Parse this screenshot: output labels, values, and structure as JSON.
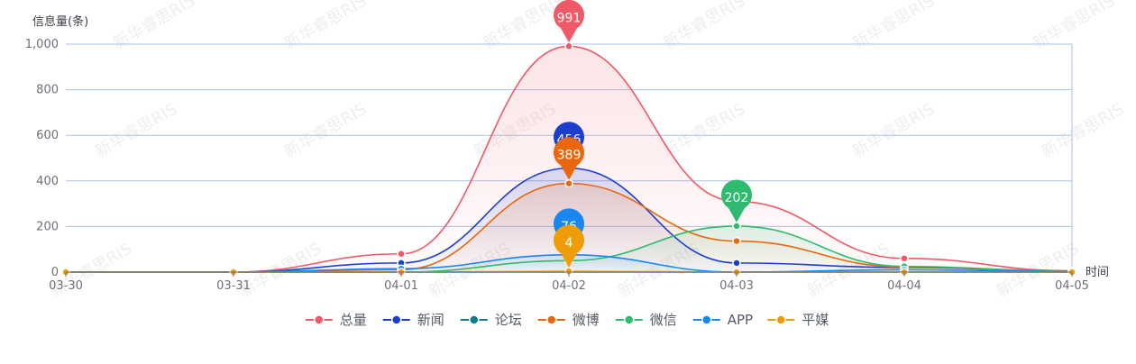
{
  "chart_data": {
    "type": "area",
    "ylabel": "信息量(条)",
    "xlabel": "时间",
    "categories": [
      "03-30",
      "03-31",
      "04-01",
      "04-02",
      "04-03",
      "04-04",
      "04-05"
    ],
    "yticks": [
      "0",
      "200",
      "400",
      "600",
      "800",
      "1,000"
    ],
    "ylim": [
      0,
      1000
    ],
    "grid": true,
    "legend_position": "bottom",
    "watermark": "新华睿思RIS",
    "series": [
      {
        "name": "总量",
        "color": "#ee5a67",
        "values": [
          0,
          0,
          80,
          991,
          310,
          60,
          5
        ],
        "peak_label": "991"
      },
      {
        "name": "新闻",
        "color": "#1b3fcc",
        "values": [
          0,
          0,
          40,
          456,
          40,
          20,
          5
        ],
        "peak_label": "456"
      },
      {
        "name": "论坛",
        "color": "#117d8a",
        "values": [
          0,
          0,
          0,
          0,
          0,
          0,
          0
        ]
      },
      {
        "name": "微博",
        "color": "#e8670f",
        "values": [
          0,
          0,
          10,
          389,
          136,
          22,
          5
        ],
        "peak_label": "389"
      },
      {
        "name": "微信",
        "color": "#2fbb6f",
        "values": [
          0,
          0,
          0,
          50,
          202,
          25,
          3
        ],
        "peak_label": "202"
      },
      {
        "name": "APP",
        "color": "#1a86f0",
        "values": [
          0,
          0,
          15,
          76,
          0,
          10,
          2
        ],
        "peak_label": "76"
      },
      {
        "name": "平媒",
        "color": "#ee9d08",
        "values": [
          0,
          0,
          0,
          4,
          0,
          0,
          0
        ],
        "peak_label": "4"
      }
    ]
  }
}
